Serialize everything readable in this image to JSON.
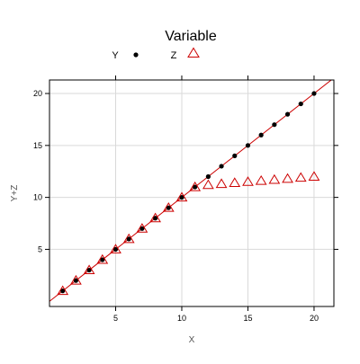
{
  "chart_data": {
    "type": "scatter",
    "title": "",
    "legend": {
      "title": "Variable",
      "placement": "top",
      "items": [
        {
          "label": "Y",
          "symbol": "filled-circle",
          "color": "#000000"
        },
        {
          "label": "Z",
          "symbol": "open-triangle",
          "color": "#cc0000"
        }
      ]
    },
    "xlabel": "X",
    "ylabel": "Y+Z",
    "xlim": [
      0,
      21.5
    ],
    "ylim": [
      -0.5,
      21.3
    ],
    "x_ticks": [
      5,
      10,
      15,
      20
    ],
    "y_ticks": [
      5,
      10,
      15,
      20
    ],
    "x_tick_labels": [
      "5",
      "10",
      "15",
      "20"
    ],
    "y_tick_labels": [
      "5",
      "10",
      "15",
      "20"
    ],
    "grid": true,
    "series": [
      {
        "name": "Y",
        "color": "#000000",
        "marker": "filled-circle",
        "x": [
          1,
          2,
          3,
          4,
          5,
          6,
          7,
          8,
          9,
          10,
          11,
          12,
          13,
          14,
          15,
          16,
          17,
          18,
          19,
          20
        ],
        "y": [
          1,
          2,
          3,
          4,
          5,
          6,
          7,
          8,
          9,
          10,
          11,
          12,
          13,
          14,
          15,
          16,
          17,
          18,
          19,
          20
        ]
      },
      {
        "name": "Z",
        "color": "#cc0000",
        "marker": "open-triangle",
        "x": [
          1,
          2,
          3,
          4,
          5,
          6,
          7,
          8,
          9,
          10,
          11,
          12,
          13,
          14,
          15,
          16,
          17,
          18,
          19,
          20
        ],
        "y": [
          1,
          2,
          3,
          4,
          5,
          6,
          7,
          8,
          9,
          10,
          11,
          11.2,
          11.3,
          11.4,
          11.5,
          11.6,
          11.7,
          11.8,
          11.9,
          12
        ]
      }
    ],
    "reference_line": {
      "description": "y = x",
      "color": "#cc0000",
      "from": [
        0,
        0
      ],
      "to": [
        21.5,
        21.5
      ]
    }
  }
}
